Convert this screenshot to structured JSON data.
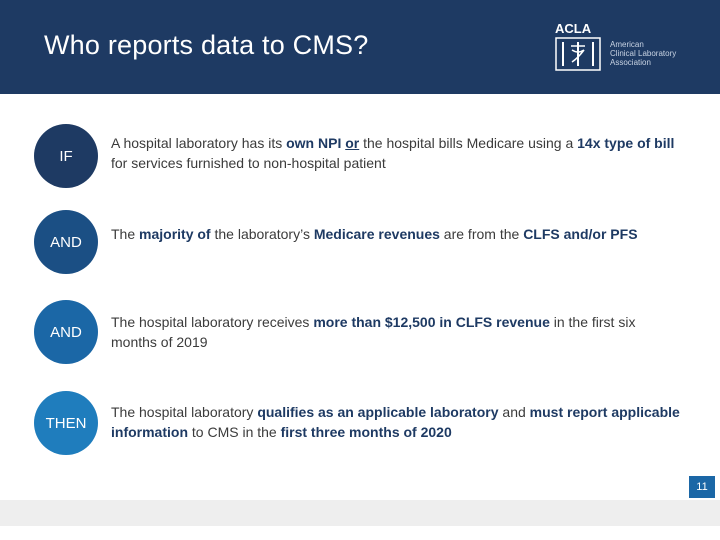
{
  "header": {
    "title": "Who reports data to CMS?",
    "logo": {
      "acronym": "ACLA",
      "line1": "American",
      "line2": "Clinical Laboratory",
      "line3": "Association"
    }
  },
  "rows": [
    {
      "label": "IF",
      "segments": [
        {
          "text": "A hospital laboratory has its ",
          "style": "normal"
        },
        {
          "text": "own NPI",
          "style": "bold"
        },
        {
          "text": " ",
          "style": "normal"
        },
        {
          "text": "or",
          "style": "bold-underline"
        },
        {
          "text": " the hospital bills Medicare using a ",
          "style": "normal"
        },
        {
          "text": "14x type of bill",
          "style": "bold"
        },
        {
          "text": " for services furnished to non-hospital patient",
          "style": "normal"
        }
      ]
    },
    {
      "label": "AND",
      "segments": [
        {
          "text": "The ",
          "style": "normal"
        },
        {
          "text": "majority of",
          "style": "bold"
        },
        {
          "text": " the laboratory’s ",
          "style": "normal"
        },
        {
          "text": "Medicare revenues",
          "style": "bold"
        },
        {
          "text": " are from the ",
          "style": "normal"
        },
        {
          "text": "CLFS and/or PFS",
          "style": "bold"
        }
      ]
    },
    {
      "label": "AND",
      "segments": [
        {
          "text": "The hospital laboratory receives ",
          "style": "normal"
        },
        {
          "text": "more than $12,500 in CLFS revenue",
          "style": "bold"
        },
        {
          "text": " in the first six months of 2019",
          "style": "normal"
        }
      ]
    },
    {
      "label": "THEN",
      "segments": [
        {
          "text": "The hospital laboratory ",
          "style": "normal"
        },
        {
          "text": "qualifies as an applicable laboratory",
          "style": "bold"
        },
        {
          "text": " and ",
          "style": "normal"
        },
        {
          "text": "must report applicable information",
          "style": "bold"
        },
        {
          "text": " to CMS in the ",
          "style": "normal"
        },
        {
          "text": "first three months of 2020",
          "style": "bold"
        }
      ]
    }
  ],
  "footer": {
    "page_number": "11"
  },
  "colors": {
    "navy": "#1e3a63",
    "blue": "#1b67a6",
    "text": "#3b3b3b"
  }
}
